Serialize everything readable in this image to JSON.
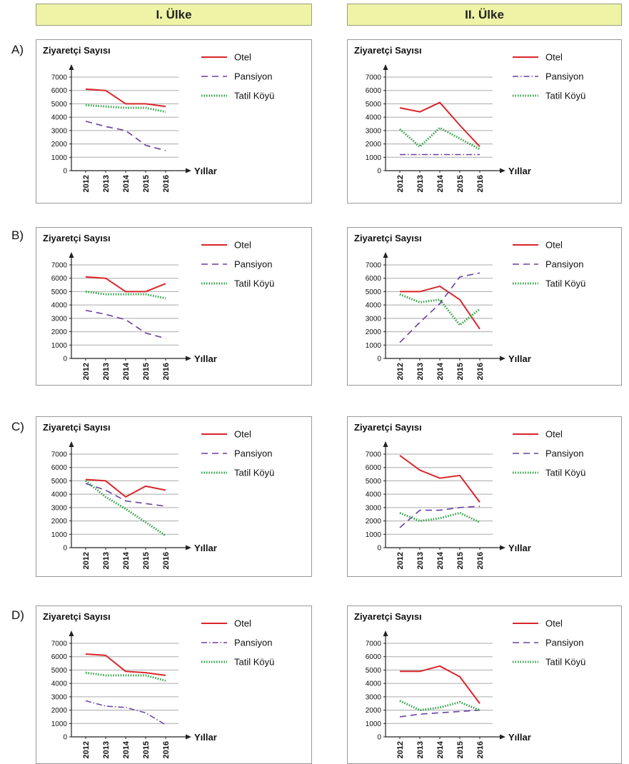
{
  "headers": [
    "I. Ülke",
    "II. Ülke"
  ],
  "options": [
    "A)",
    "B)",
    "C)",
    "D)"
  ],
  "chart_data": [
    {
      "type": "line",
      "title": "Ziyaretçi Sayısı",
      "x_label": "Yıllar",
      "categories": [
        "2012",
        "2013",
        "2014",
        "2015",
        "2016"
      ],
      "ylim": [
        0,
        7000
      ],
      "yticks": [
        0,
        1000,
        2000,
        3000,
        4000,
        5000,
        6000,
        7000
      ],
      "grid": true,
      "series": [
        {
          "name": "Otel",
          "color": "#d9262b",
          "dash": "solid",
          "values": [
            6100,
            6000,
            5000,
            5000,
            4800
          ]
        },
        {
          "name": "Pansiyon",
          "color": "#6a3fa0",
          "dash": "dashed",
          "values": [
            3700,
            3300,
            3000,
            1900,
            1500
          ]
        },
        {
          "name": "Tatil Köyü",
          "color": "#2ea043",
          "dash": "dotted",
          "values": [
            4900,
            4800,
            4700,
            4700,
            4400
          ]
        }
      ]
    },
    {
      "type": "line",
      "title": "Ziyaretçi Sayısı",
      "x_label": "Yıllar",
      "categories": [
        "2012",
        "2013",
        "2014",
        "2015",
        "2016"
      ],
      "ylim": [
        0,
        7000
      ],
      "yticks": [
        0,
        1000,
        2000,
        3000,
        4000,
        5000,
        6000,
        7000
      ],
      "grid": true,
      "series": [
        {
          "name": "Otel",
          "color": "#d9262b",
          "dash": "solid",
          "values": [
            4700,
            4400,
            5100,
            3400,
            1800
          ]
        },
        {
          "name": "Pansiyon",
          "color": "#6a3fa0",
          "dash": "dashdot",
          "values": [
            1200,
            1200,
            1200,
            1200,
            1200
          ]
        },
        {
          "name": "Tatil Köyü",
          "color": "#2ea043",
          "dash": "dotted",
          "values": [
            3100,
            1800,
            3200,
            2400,
            1600
          ]
        }
      ]
    },
    {
      "type": "line",
      "title": "Ziyaretçi Sayısı",
      "x_label": "Yıllar",
      "categories": [
        "2012",
        "2013",
        "2014",
        "2015",
        "2016"
      ],
      "ylim": [
        0,
        7000
      ],
      "yticks": [
        0,
        1000,
        2000,
        3000,
        4000,
        5000,
        6000,
        7000
      ],
      "grid": true,
      "series": [
        {
          "name": "Otel",
          "color": "#d9262b",
          "dash": "solid",
          "values": [
            6100,
            6000,
            5000,
            5000,
            5600
          ]
        },
        {
          "name": "Pansiyon",
          "color": "#6a3fa0",
          "dash": "dashed",
          "values": [
            3600,
            3300,
            2900,
            1900,
            1500
          ]
        },
        {
          "name": "Tatil Köyü",
          "color": "#2ea043",
          "dash": "dotted",
          "values": [
            5000,
            4800,
            4800,
            4800,
            4500
          ]
        }
      ]
    },
    {
      "type": "line",
      "title": "Ziyaretçi Sayısı",
      "x_label": "Yıllar",
      "categories": [
        "2012",
        "2013",
        "2014",
        "2015",
        "2016"
      ],
      "ylim": [
        0,
        7000
      ],
      "yticks": [
        0,
        1000,
        2000,
        3000,
        4000,
        5000,
        6000,
        7000
      ],
      "grid": true,
      "series": [
        {
          "name": "Otel",
          "color": "#d9262b",
          "dash": "solid",
          "values": [
            5000,
            5000,
            5400,
            4400,
            2200
          ]
        },
        {
          "name": "Pansiyon",
          "color": "#6a3fa0",
          "dash": "dashed",
          "values": [
            1200,
            2700,
            4100,
            6100,
            6400
          ]
        },
        {
          "name": "Tatil Köyü",
          "color": "#2ea043",
          "dash": "dotted",
          "values": [
            4800,
            4200,
            4400,
            2500,
            3700
          ]
        }
      ]
    },
    {
      "type": "line",
      "title": "Ziyaretçi Sayısı",
      "x_label": "Yıllar",
      "categories": [
        "2012",
        "2013",
        "2014",
        "2015",
        "2016"
      ],
      "ylim": [
        0,
        7000
      ],
      "yticks": [
        0,
        1000,
        2000,
        3000,
        4000,
        5000,
        6000,
        7000
      ],
      "grid": true,
      "series": [
        {
          "name": "Otel",
          "color": "#d9262b",
          "dash": "solid",
          "values": [
            5100,
            5000,
            3800,
            4600,
            4300
          ]
        },
        {
          "name": "Pansiyon",
          "color": "#6a3fa0",
          "dash": "dashed",
          "values": [
            4800,
            4300,
            3500,
            3300,
            3100
          ]
        },
        {
          "name": "Tatil Köyü",
          "color": "#2ea043",
          "dash": "dotted",
          "values": [
            5000,
            3800,
            2900,
            1900,
            900
          ]
        }
      ]
    },
    {
      "type": "line",
      "title": "Ziyaretçi Sayısı",
      "x_label": "Yıllar",
      "categories": [
        "2012",
        "2013",
        "2014",
        "2015",
        "2016"
      ],
      "ylim": [
        0,
        7000
      ],
      "yticks": [
        0,
        1000,
        2000,
        3000,
        4000,
        5000,
        6000,
        7000
      ],
      "grid": true,
      "series": [
        {
          "name": "Otel",
          "color": "#d9262b",
          "dash": "solid",
          "values": [
            6900,
            5800,
            5200,
            5400,
            3400
          ]
        },
        {
          "name": "Pansiyon",
          "color": "#6a3fa0",
          "dash": "dashed",
          "values": [
            1500,
            2800,
            2800,
            3000,
            3100
          ]
        },
        {
          "name": "Tatil Köyü",
          "color": "#2ea043",
          "dash": "dotted",
          "values": [
            2600,
            2000,
            2200,
            2600,
            1900
          ]
        }
      ]
    },
    {
      "type": "line",
      "title": "Ziyaretçi Sayısı",
      "x_label": "Yıllar",
      "categories": [
        "2012",
        "2013",
        "2014",
        "2015",
        "2016"
      ],
      "ylim": [
        0,
        7000
      ],
      "yticks": [
        0,
        1000,
        2000,
        3000,
        4000,
        5000,
        6000,
        7000
      ],
      "grid": true,
      "series": [
        {
          "name": "Otel",
          "color": "#d9262b",
          "dash": "solid",
          "values": [
            6200,
            6100,
            4900,
            4800,
            4600
          ]
        },
        {
          "name": "Pansiyon",
          "color": "#6a3fa0",
          "dash": "dashdot",
          "values": [
            2700,
            2300,
            2200,
            1800,
            900
          ]
        },
        {
          "name": "Tatil Köyü",
          "color": "#2ea043",
          "dash": "dotted",
          "values": [
            4800,
            4600,
            4600,
            4600,
            4200
          ]
        }
      ]
    },
    {
      "type": "line",
      "title": "Ziyaretçi Sayısı",
      "x_label": "Yıllar",
      "categories": [
        "2012",
        "2013",
        "2014",
        "2015",
        "2016"
      ],
      "ylim": [
        0,
        7000
      ],
      "yticks": [
        0,
        1000,
        2000,
        3000,
        4000,
        5000,
        6000,
        7000
      ],
      "grid": true,
      "series": [
        {
          "name": "Otel",
          "color": "#d9262b",
          "dash": "solid",
          "values": [
            4900,
            4900,
            5300,
            4500,
            2500
          ]
        },
        {
          "name": "Pansiyon",
          "color": "#6a3fa0",
          "dash": "dashed",
          "values": [
            1500,
            1700,
            1800,
            1900,
            2000
          ]
        },
        {
          "name": "Tatil Köyü",
          "color": "#2ea043",
          "dash": "dotted",
          "values": [
            2700,
            2000,
            2200,
            2600,
            2000
          ]
        }
      ]
    }
  ]
}
